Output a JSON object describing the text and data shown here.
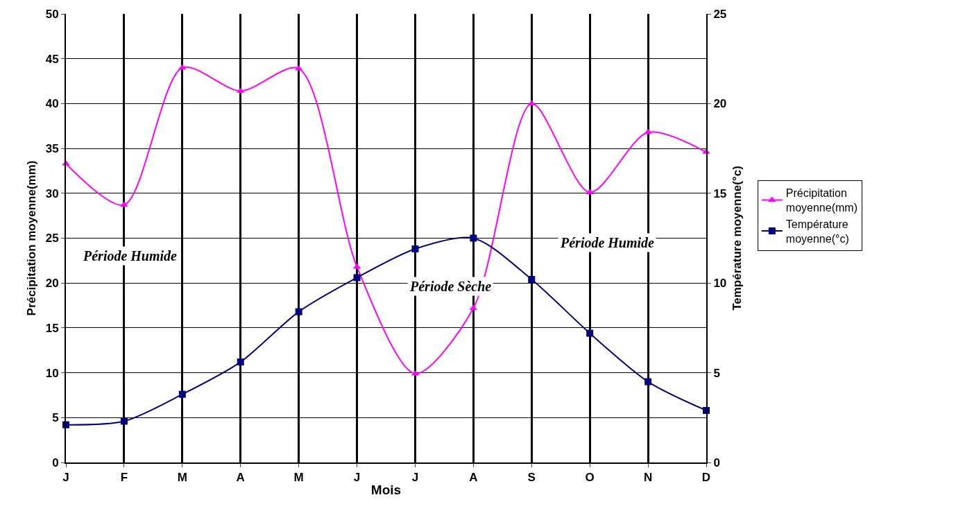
{
  "chart_data": {
    "type": "line",
    "categories": [
      "J",
      "F",
      "M",
      "A",
      "M",
      "J",
      "J",
      "A",
      "S",
      "O",
      "N",
      "D"
    ],
    "xlabel": "Mois",
    "ylabel": "Précipitation moyenne(mm)",
    "y2label": "Température moyenne(°c)",
    "series": [
      {
        "name": "Précipitation moyenne(mm)",
        "color": "#ff00ff",
        "marker": "triangle",
        "values": [
          33.3,
          28.7,
          44.0,
          41.4,
          43.9,
          21.8,
          9.9,
          17.2,
          40.0,
          30.1,
          36.8,
          34.6
        ]
      },
      {
        "name": "Température moyenne(°c)",
        "color": "#000080",
        "marker": "square",
        "axis": "y2",
        "values": [
          2.1,
          2.3,
          3.8,
          5.6,
          8.4,
          10.3,
          11.9,
          12.5,
          10.2,
          7.2,
          4.5,
          2.9
        ]
      }
    ],
    "ylim": [
      0,
      50
    ],
    "yticks": [
      0,
      5,
      10,
      15,
      20,
      25,
      30,
      35,
      40,
      45,
      50
    ],
    "y2lim": [
      0,
      25
    ],
    "y2ticks": [
      0,
      5,
      10,
      15,
      20,
      25
    ],
    "annotations": [
      "Période Humide",
      "Période Sèche",
      "Période Humide"
    ],
    "grid": true,
    "legend": "right",
    "line_style": "solid"
  }
}
